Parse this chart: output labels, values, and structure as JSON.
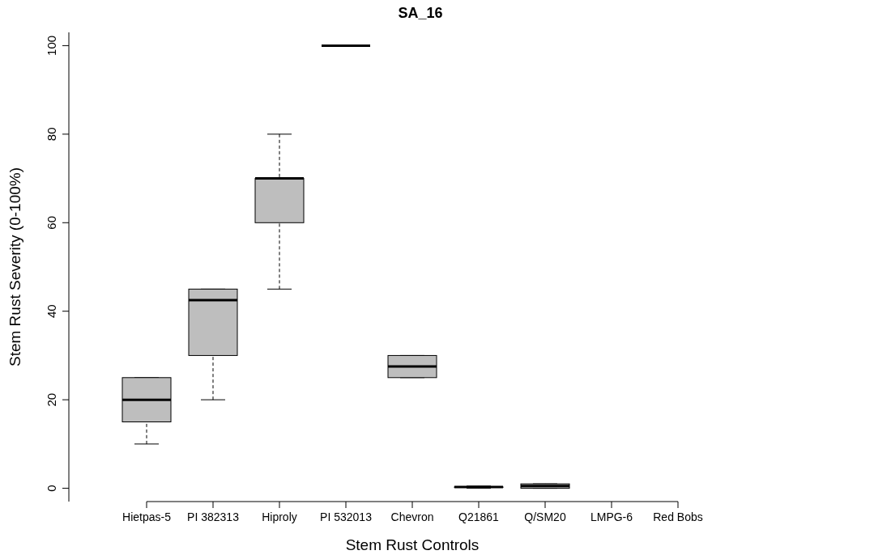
{
  "chart_data": {
    "type": "box",
    "title": "SA_16",
    "xlabel": "Stem Rust Controls",
    "ylabel": "Stem Rust Severity (0-100%)",
    "categories": [
      "Hietpas-5",
      "PI 382313",
      "Hiproly",
      "PI 532013",
      "Chevron",
      "Q21861",
      "Q/SM20",
      "LMPG-6",
      "Red Bobs"
    ],
    "colors": [
      "#bebebe",
      "#bebebe",
      "#bebebe",
      null,
      "#bebebe",
      "#bebebe",
      "#bebebe",
      null,
      null
    ],
    "boxes": [
      {
        "low": 10,
        "q1": 15,
        "median": 20,
        "q3": 25,
        "high": 25
      },
      {
        "low": 20,
        "q1": 30,
        "median": 42.5,
        "q3": 45,
        "high": 45
      },
      {
        "low": 45,
        "q1": 60,
        "median": 70,
        "q3": 70,
        "high": 80
      },
      {
        "low": 100,
        "q1": 100,
        "median": 100,
        "q3": 100,
        "high": 100
      },
      {
        "low": 25,
        "q1": 25,
        "median": 27.5,
        "q3": 30,
        "high": 30
      },
      {
        "low": 0,
        "q1": 0.2,
        "median": 0.3,
        "q3": 0.3,
        "high": 0.5
      },
      {
        "low": 0,
        "q1": 0,
        "median": 0.5,
        "q3": 1,
        "high": 1
      },
      null,
      null
    ],
    "ylim": [
      -3,
      103
    ],
    "yticks": [
      0,
      20,
      40,
      60,
      80,
      100
    ],
    "grid": false
  }
}
